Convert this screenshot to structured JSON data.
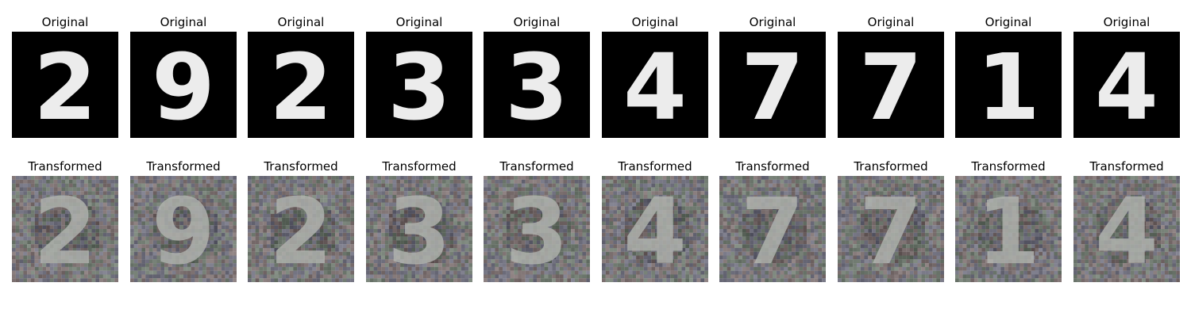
{
  "rows": [
    {
      "title": "Original",
      "style": "original",
      "digits": [
        "2",
        "9",
        "2",
        "3",
        "3",
        "4",
        "7",
        "7",
        "1",
        "4"
      ]
    },
    {
      "title": "Transformed",
      "style": "transformed",
      "digits": [
        "2",
        "9",
        "2",
        "3",
        "3",
        "4",
        "7",
        "7",
        "1",
        "4"
      ]
    }
  ],
  "colors": {
    "original_background": "#000000",
    "original_stroke": "#ececec",
    "transformed_background": "#6f706d",
    "transformed_stroke": "#b3b6b1"
  }
}
